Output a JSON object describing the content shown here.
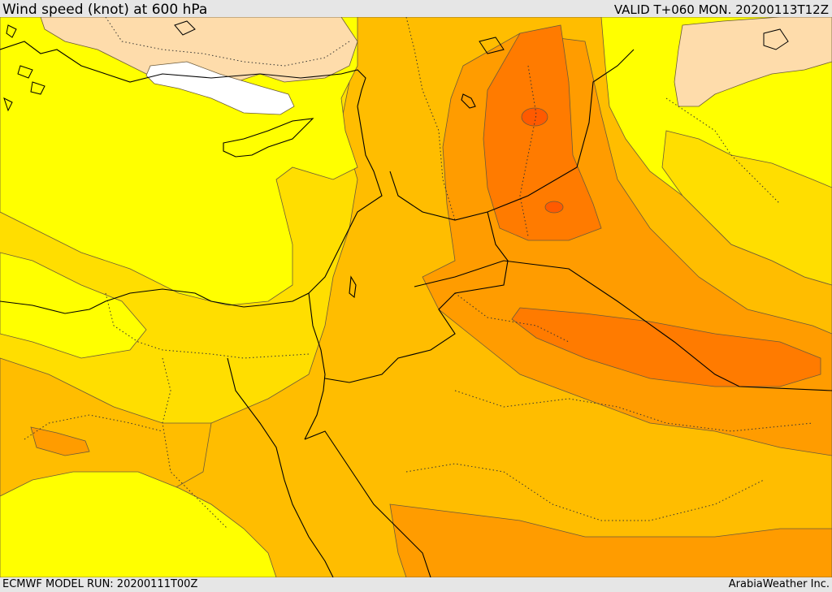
{
  "header": {
    "title": "Wind speed (knot) at 600 hPa",
    "valid_time": "VALID T+060 MON. 20200113T12Z"
  },
  "footer": {
    "model_run": "ECMWF MODEL RUN: 20200111T00Z",
    "credit": "ArabiaWeather Inc."
  },
  "map": {
    "region": "Eastern Mediterranean / Middle East",
    "fill_colors": {
      "white": "#ffffff",
      "peach": "#fedcab",
      "yellow": "#ffff00",
      "gold": "#ffde00",
      "amber": "#ffbd00",
      "orange": "#ff9c00",
      "dark_orange": "#ff7b00",
      "red_orange": "#ff5a00"
    },
    "line_colors": {
      "coastline": "#000000",
      "contour": "#6b5a3a"
    }
  }
}
